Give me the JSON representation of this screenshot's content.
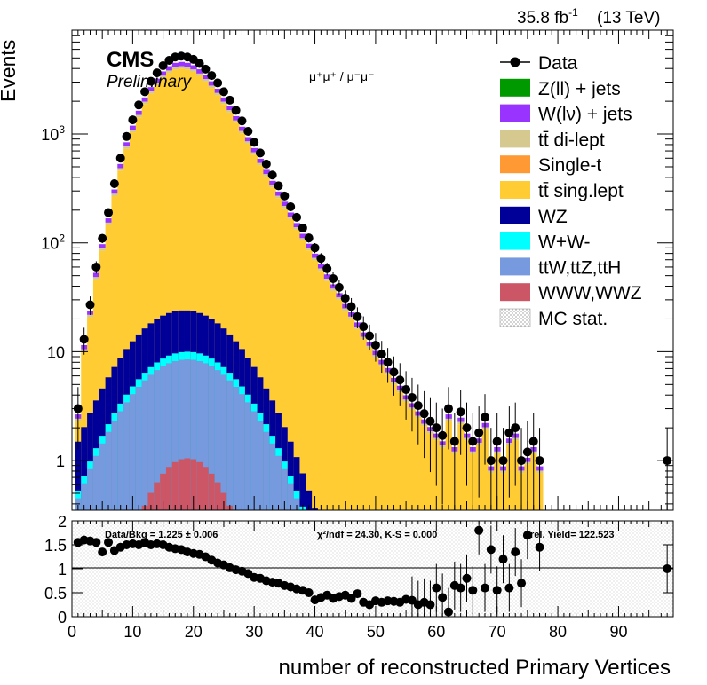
{
  "header": {
    "lumi": "35.8 fb",
    "lumi_sup": "-1",
    "energy": "(13 TeV)",
    "cms": "CMS",
    "preliminary": "Preliminary",
    "channel": "μ⁺μ⁺ / μ⁻μ⁻"
  },
  "chart_data": [
    {
      "type": "bar",
      "stacked": true,
      "log_y": true,
      "xlabel": "number of reconstructed Primary Vertices",
      "ylabel": "Events",
      "xlim": [
        0,
        99
      ],
      "ylim": [
        0.35,
        9000
      ],
      "x_ticks": [
        0,
        10,
        20,
        30,
        40,
        50,
        60,
        70,
        80,
        90
      ],
      "y_ticks": [
        {
          "v": 1,
          "label": "1"
        },
        {
          "v": 10,
          "label": "10"
        },
        {
          "v": 100,
          "label": "10",
          "sup": "2"
        },
        {
          "v": 1000,
          "label": "10",
          "sup": "3"
        }
      ],
      "legend_position": "top-right",
      "legend": [
        {
          "label": "Data",
          "kind": "marker",
          "color": "#000000"
        },
        {
          "label": "Z(ll) + jets",
          "kind": "fill",
          "color": "#009900"
        },
        {
          "label": "W(lν) + jets",
          "kind": "fill",
          "color": "#9933ff"
        },
        {
          "label": "tt̄ di-lept",
          "kind": "fill",
          "color": "#d6c98f"
        },
        {
          "label": "Single-t",
          "kind": "fill",
          "color": "#ff9933"
        },
        {
          "label": "tt̄ sing.lept",
          "kind": "fill",
          "color": "#ffcc33"
        },
        {
          "label": "WZ",
          "kind": "fill",
          "color": "#000099"
        },
        {
          "label": "W+W-",
          "kind": "fill",
          "color": "#00ffff"
        },
        {
          "label": "ttW,ttZ,ttH",
          "kind": "fill",
          "color": "#7799dd"
        },
        {
          "label": "WWW,WWZ",
          "kind": "fill",
          "color": "#cc5566"
        },
        {
          "label": "MC stat.",
          "kind": "hatch",
          "color": "#555555"
        }
      ],
      "data_points": {
        "x": [
          1,
          2,
          3,
          4,
          5,
          6,
          7,
          8,
          9,
          10,
          11,
          12,
          13,
          14,
          15,
          16,
          17,
          18,
          19,
          20,
          21,
          22,
          23,
          24,
          25,
          26,
          27,
          28,
          29,
          30,
          31,
          32,
          33,
          34,
          35,
          36,
          37,
          38,
          39,
          40,
          41,
          42,
          43,
          44,
          45,
          46,
          47,
          48,
          49,
          50,
          51,
          52,
          53,
          54,
          55,
          56,
          57,
          58,
          59,
          60,
          61,
          62,
          63,
          64,
          65,
          66,
          67,
          68,
          69,
          70,
          71,
          72,
          73,
          74,
          75,
          76,
          77,
          98
        ],
        "y": [
          3.0,
          13,
          27,
          60,
          110,
          190,
          350,
          600,
          950,
          1350,
          1850,
          2450,
          3050,
          3650,
          4250,
          4750,
          5100,
          5200,
          5100,
          4850,
          4450,
          3950,
          3450,
          2950,
          2450,
          2050,
          1650,
          1320,
          1060,
          840,
          670,
          530,
          420,
          335,
          270,
          215,
          172,
          137,
          111,
          90,
          72,
          58,
          47,
          39,
          31,
          26,
          21,
          17,
          14,
          11.5,
          9.5,
          8.0,
          6.5,
          5.5,
          4.5,
          3.8,
          3.2,
          2.7,
          2.3,
          2.0,
          1.7,
          3.0,
          1.5,
          2.8,
          2.0,
          1.5,
          1.8,
          2.5,
          1.0,
          1.5,
          1.0,
          1.8,
          2.0,
          1.0,
          1.2,
          1.5,
          1.0,
          1.0
        ]
      }
    },
    {
      "type": "scatter",
      "title": "Data/Bkg = 1.225 ± 0.006",
      "chi2": "χ²/ndf = 24.30,   K-S = 0.000",
      "rel_yield": "rel. Yield= 122.523",
      "ylim": [
        0,
        2
      ],
      "y_ticks": [
        "0",
        "0.5",
        "1",
        "1.5",
        "2"
      ],
      "x": [
        1,
        2,
        3,
        4,
        5,
        6,
        7,
        8,
        9,
        10,
        11,
        12,
        13,
        14,
        15,
        16,
        17,
        18,
        19,
        20,
        21,
        22,
        23,
        24,
        25,
        26,
        27,
        28,
        29,
        30,
        31,
        32,
        33,
        34,
        35,
        36,
        37,
        38,
        39,
        40,
        41,
        42,
        43,
        44,
        45,
        46,
        47,
        48,
        49,
        50,
        51,
        52,
        53,
        54,
        55,
        56,
        57,
        58,
        59,
        60,
        61,
        62,
        63,
        64,
        65,
        66,
        67,
        68,
        69,
        70,
        71,
        72,
        73,
        74,
        75,
        77,
        98
      ],
      "y": [
        1.55,
        1.6,
        1.58,
        1.55,
        1.35,
        1.55,
        1.38,
        1.45,
        1.5,
        1.52,
        1.5,
        1.55,
        1.5,
        1.52,
        1.5,
        1.45,
        1.42,
        1.4,
        1.35,
        1.32,
        1.3,
        1.25,
        1.18,
        1.12,
        1.08,
        1.02,
        0.98,
        0.95,
        0.9,
        0.82,
        0.8,
        0.75,
        0.72,
        0.7,
        0.65,
        0.62,
        0.58,
        0.55,
        0.5,
        0.35,
        0.4,
        0.45,
        0.38,
        0.42,
        0.45,
        0.38,
        0.48,
        0.3,
        0.25,
        0.33,
        0.3,
        0.33,
        0.32,
        0.3,
        0.36,
        0.34,
        0.25,
        0.3,
        0.25,
        0.6,
        0.4,
        0.1,
        0.65,
        0.6,
        0.8,
        0.55,
        1.8,
        0.6,
        1.4,
        0.55,
        1.2,
        0.6,
        1.35,
        0.7,
        1.7,
        1.45,
        1.0
      ]
    }
  ]
}
